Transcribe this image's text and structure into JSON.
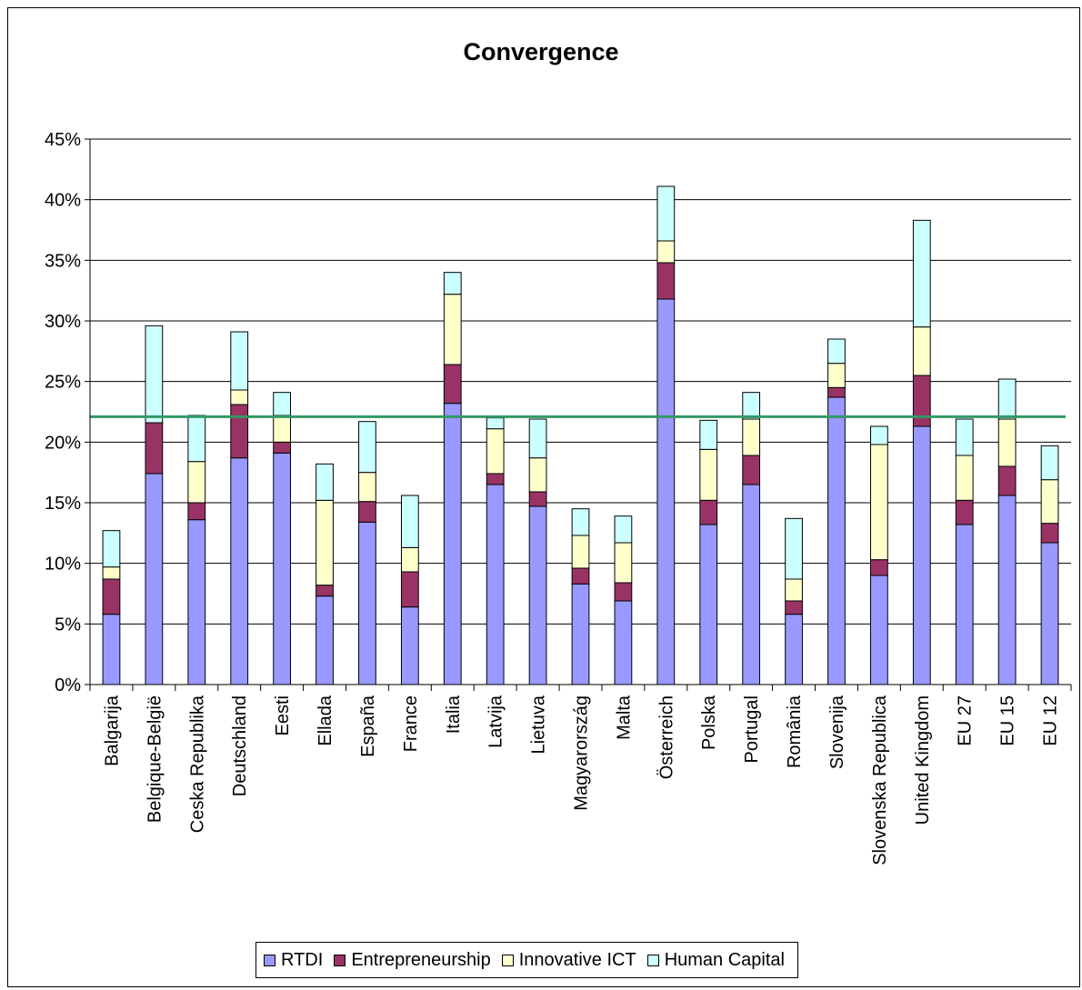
{
  "chart_data": {
    "type": "bar",
    "stacked": true,
    "title": "Convergence",
    "xlabel": "",
    "ylabel": "",
    "ylim": [
      0,
      45
    ],
    "yticks": [
      "0%",
      "5%",
      "10%",
      "15%",
      "20%",
      "25%",
      "30%",
      "35%",
      "40%",
      "45%"
    ],
    "grid": true,
    "legend_position": "bottom",
    "categories": [
      "Balgarija",
      "Belgique-België",
      "Ceska Republika",
      "Deutschland",
      "Eesti",
      "Ellada",
      "España",
      "France",
      "Italia",
      "Latvija",
      "Lietuva",
      "Magyarország",
      "Malta",
      "Österreich",
      "Polska",
      "Portugal",
      "România",
      "Slovenija",
      "Slovenska Republica",
      "United Kingdom",
      "EU 27",
      "EU 15",
      "EU 12"
    ],
    "series": [
      {
        "name": "RTDI",
        "color": "#9999ff",
        "values": [
          5.8,
          17.4,
          13.6,
          18.7,
          19.1,
          7.3,
          13.4,
          6.4,
          23.2,
          16.5,
          14.7,
          8.3,
          6.9,
          31.8,
          13.2,
          16.5,
          5.8,
          23.7,
          9.0,
          21.3,
          13.2,
          15.6,
          11.7
        ]
      },
      {
        "name": "Entrepreneurship",
        "color": "#993366",
        "values": [
          2.9,
          4.2,
          1.4,
          4.4,
          0.9,
          0.9,
          1.7,
          2.9,
          3.2,
          0.9,
          1.2,
          1.3,
          1.5,
          3.0,
          2.0,
          2.4,
          1.1,
          0.8,
          1.3,
          4.2,
          2.0,
          2.4,
          1.6
        ]
      },
      {
        "name": "Innovative ICT",
        "color": "#ffffcc",
        "values": [
          1.0,
          0.0,
          3.4,
          1.2,
          2.2,
          7.0,
          2.4,
          2.0,
          5.8,
          3.7,
          2.8,
          2.7,
          3.3,
          1.8,
          4.2,
          3.0,
          1.8,
          2.0,
          9.5,
          4.0,
          3.7,
          3.9,
          3.6
        ]
      },
      {
        "name": "Human Capital",
        "color": "#ccffff",
        "values": [
          3.0,
          8.0,
          3.8,
          4.8,
          1.9,
          3.0,
          4.2,
          4.3,
          1.8,
          0.9,
          3.2,
          2.2,
          2.2,
          4.5,
          2.4,
          2.2,
          5.0,
          2.0,
          1.5,
          8.8,
          3.0,
          3.3,
          2.8
        ]
      }
    ],
    "reference_line": {
      "value": 22.1,
      "color": "#339966"
    },
    "colors": {
      "axis": "#000000",
      "grid": "#000000",
      "reference": "#339966"
    }
  }
}
